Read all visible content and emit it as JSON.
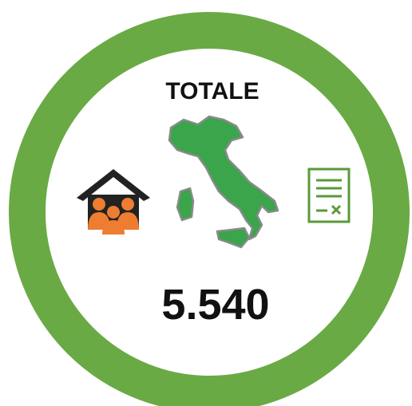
{
  "title": "TOTALE",
  "value": "5.540"
}
